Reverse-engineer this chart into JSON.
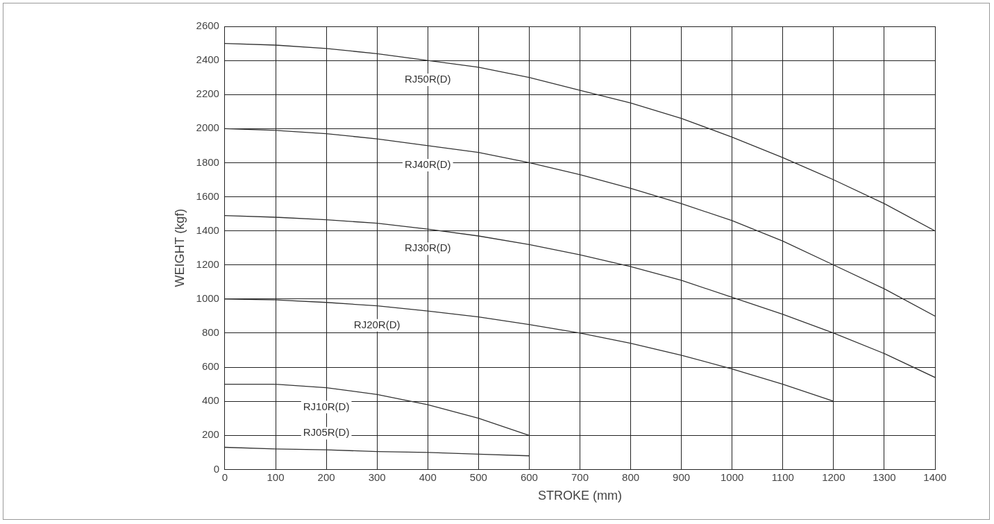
{
  "chart_data": {
    "type": "line",
    "xlabel": "STROKE (mm)",
    "ylabel": "WEIGHT (kgf)",
    "x": [
      0,
      100,
      200,
      300,
      400,
      500,
      600,
      700,
      800,
      900,
      1000,
      1100,
      1200,
      1300,
      1400
    ],
    "series": [
      {
        "name": "RJ50R(D)",
        "color": "#333333",
        "values": [
          2500,
          2490,
          2470,
          2440,
          2400,
          2360,
          2300,
          2225,
          2150,
          2060,
          1950,
          1830,
          1700,
          1560,
          1400
        ]
      },
      {
        "name": "RJ40R(D)",
        "color": "#333333",
        "values": [
          2000,
          1990,
          1970,
          1940,
          1900,
          1860,
          1800,
          1730,
          1650,
          1560,
          1460,
          1340,
          1200,
          1060,
          900
        ]
      },
      {
        "name": "RJ30R(D)",
        "color": "#333333",
        "values": [
          1490,
          1480,
          1465,
          1445,
          1410,
          1370,
          1320,
          1260,
          1190,
          1110,
          1010,
          910,
          800,
          680,
          540
        ]
      },
      {
        "name": "RJ20R(D)",
        "color": "#333333",
        "x": [
          0,
          100,
          200,
          300,
          400,
          500,
          600,
          700,
          800,
          900,
          1000,
          1100,
          1200
        ],
        "values": [
          1000,
          995,
          980,
          960,
          930,
          895,
          850,
          800,
          740,
          670,
          590,
          500,
          400
        ]
      },
      {
        "name": "RJ10R(D)",
        "color": "#333333",
        "x": [
          0,
          100,
          200,
          300,
          400,
          500,
          600
        ],
        "values": [
          500,
          500,
          480,
          440,
          380,
          300,
          200
        ]
      },
      {
        "name": "RJ05R(D)",
        "color": "#333333",
        "x": [
          0,
          100,
          200,
          300,
          400,
          500,
          600
        ],
        "values": [
          130,
          120,
          115,
          105,
          100,
          90,
          80
        ]
      }
    ],
    "xlim": [
      0,
      1400
    ],
    "xticks": [
      0,
      100,
      200,
      300,
      400,
      500,
      600,
      700,
      800,
      900,
      1000,
      1100,
      1200,
      1300,
      1400
    ],
    "ylim": [
      0,
      2600
    ],
    "yticks": [
      0,
      200,
      400,
      600,
      800,
      1000,
      1200,
      1400,
      1600,
      1800,
      2000,
      2200,
      2400,
      2600
    ],
    "grid": true,
    "legend": false,
    "marker": "none",
    "line_style": "solid"
  }
}
